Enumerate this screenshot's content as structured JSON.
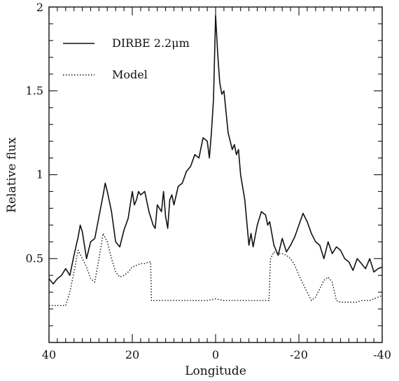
{
  "chart_data": {
    "type": "line",
    "xlabel": "Longitude",
    "ylabel": "Relative flux",
    "xlim": [
      40,
      -40
    ],
    "ylim": [
      0,
      2
    ],
    "x_reversed": true,
    "x_ticks": [
      40,
      20,
      0,
      -20,
      -40
    ],
    "y_ticks": [
      0.5,
      1,
      1.5,
      2
    ],
    "y_tick_labels": [
      "0.5",
      "1",
      "1.5",
      "2"
    ],
    "grid": false,
    "legend_position": "top-left",
    "series": [
      {
        "name": "DIRBE 2.2μm",
        "style": "solid",
        "color": "#111111",
        "x": [
          40,
          39,
          38,
          37,
          36,
          35,
          34,
          33,
          32.5,
          32,
          31,
          30,
          29,
          28,
          27,
          26.5,
          26,
          25,
          24,
          23,
          22,
          21,
          20,
          19.5,
          19,
          18.5,
          18,
          17,
          16,
          15,
          14.5,
          14,
          13,
          12.5,
          12,
          11.5,
          11,
          10.5,
          10,
          9,
          8,
          7,
          6,
          5,
          4,
          3,
          2,
          1.5,
          1,
          0.5,
          0,
          -0.5,
          -1,
          -1.5,
          -2,
          -3,
          -4,
          -4.5,
          -5,
          -5.5,
          -6,
          -7,
          -8,
          -8.5,
          -9,
          -10,
          -11,
          -12,
          -12.5,
          -13,
          -14,
          -15,
          -16,
          -17,
          -18,
          -19,
          -20,
          -21,
          -22,
          -23,
          -24,
          -25,
          -26,
          -27,
          -28,
          -29,
          -30,
          -31,
          -32,
          -33,
          -34,
          -35,
          -36,
          -37,
          -38,
          -39,
          -40
        ],
        "y": [
          0.38,
          0.35,
          0.38,
          0.4,
          0.44,
          0.4,
          0.52,
          0.63,
          0.7,
          0.66,
          0.5,
          0.6,
          0.62,
          0.75,
          0.88,
          0.95,
          0.9,
          0.78,
          0.6,
          0.57,
          0.67,
          0.74,
          0.9,
          0.82,
          0.85,
          0.9,
          0.88,
          0.9,
          0.78,
          0.7,
          0.68,
          0.82,
          0.78,
          0.9,
          0.75,
          0.68,
          0.85,
          0.88,
          0.82,
          0.93,
          0.95,
          1.02,
          1.05,
          1.12,
          1.1,
          1.22,
          1.2,
          1.1,
          1.25,
          1.45,
          1.95,
          1.72,
          1.55,
          1.48,
          1.5,
          1.25,
          1.15,
          1.18,
          1.12,
          1.15,
          1.0,
          0.85,
          0.58,
          0.65,
          0.57,
          0.7,
          0.78,
          0.76,
          0.7,
          0.72,
          0.58,
          0.52,
          0.62,
          0.54,
          0.58,
          0.63,
          0.7,
          0.77,
          0.72,
          0.65,
          0.6,
          0.58,
          0.5,
          0.6,
          0.53,
          0.57,
          0.55,
          0.5,
          0.48,
          0.43,
          0.5,
          0.47,
          0.44,
          0.5,
          0.42,
          0.44,
          0.45
        ]
      },
      {
        "name": "Model",
        "style": "dotted",
        "color": "#111111",
        "x": [
          40,
          39,
          38,
          37,
          36,
          35,
          34,
          33,
          32,
          31,
          30,
          29,
          28,
          27,
          26,
          25,
          24,
          23,
          22,
          21,
          20,
          19,
          18,
          17,
          16,
          15.6,
          15.4,
          14,
          12,
          10,
          8,
          6,
          4,
          2,
          0,
          -2,
          -4,
          -6,
          -8,
          -10,
          -12,
          -12.8,
          -13.2,
          -14,
          -15,
          -16,
          -17,
          -18,
          -19,
          -20,
          -21,
          -22,
          -23,
          -24,
          -25,
          -26,
          -27,
          -28,
          -29,
          -30,
          -31,
          -32,
          -33,
          -34,
          -35,
          -36,
          -37,
          -38,
          -39,
          -40
        ],
        "y": [
          0.22,
          0.22,
          0.22,
          0.22,
          0.22,
          0.3,
          0.42,
          0.55,
          0.5,
          0.45,
          0.38,
          0.36,
          0.5,
          0.65,
          0.6,
          0.5,
          0.42,
          0.39,
          0.4,
          0.42,
          0.45,
          0.46,
          0.47,
          0.47,
          0.48,
          0.48,
          0.25,
          0.25,
          0.25,
          0.25,
          0.25,
          0.25,
          0.25,
          0.25,
          0.26,
          0.25,
          0.25,
          0.25,
          0.25,
          0.25,
          0.25,
          0.25,
          0.5,
          0.54,
          0.53,
          0.53,
          0.52,
          0.5,
          0.46,
          0.4,
          0.35,
          0.3,
          0.25,
          0.27,
          0.32,
          0.37,
          0.39,
          0.36,
          0.25,
          0.24,
          0.24,
          0.24,
          0.24,
          0.24,
          0.25,
          0.25,
          0.25,
          0.26,
          0.27,
          0.28
        ]
      }
    ]
  }
}
